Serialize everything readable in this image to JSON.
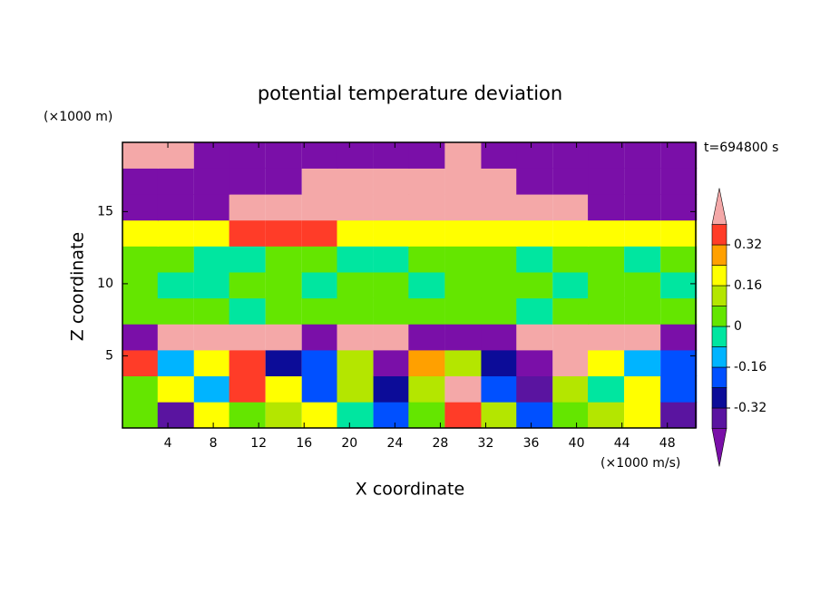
{
  "chart_data": {
    "type": "contour",
    "title": "potential temperature deviation",
    "xlabel": "X coordinate",
    "ylabel": "Z coordinate",
    "x_unit": "(×1000 m/s)",
    "y_unit": "(×1000 m)",
    "annotation": "t=694800 s",
    "xlim": [
      0,
      50.5
    ],
    "ylim": [
      0,
      19.8
    ],
    "xticks": [
      4,
      8,
      12,
      16,
      20,
      24,
      28,
      32,
      36,
      40,
      44,
      48
    ],
    "yticks": [
      5,
      10,
      15
    ],
    "levels": [
      -0.4,
      -0.32,
      -0.24,
      -0.16,
      -0.08,
      0,
      0.08,
      0.16,
      0.24,
      0.32,
      0.4
    ],
    "colors": [
      "#5a14a0",
      "#0c0c98",
      "#0050ff",
      "#00b4ff",
      "#00e6a0",
      "#64e600",
      "#b4e600",
      "#ffff00",
      "#ffa000",
      "#ff3c28"
    ],
    "under_color": "#7a0fa8",
    "over_color": "#f4a8a8",
    "colorbar_ticks": [
      0.32,
      0.16,
      0,
      -0.16,
      -0.32
    ],
    "field": {
      "x": [
        1.6,
        4.7,
        7.9,
        11,
        14.2,
        17.4,
        20.5,
        23.7,
        26.8,
        30,
        33.2,
        36.3,
        39.5,
        42.6,
        45.8,
        49
      ],
      "z": [
        0.9,
        2.7,
        4.5,
        6.3,
        8.1,
        9.9,
        11.7,
        13.5,
        15.3,
        17.1,
        18.9
      ],
      "values": [
        [
          0.05,
          -0.35,
          0.2,
          0.05,
          0.12,
          0.2,
          -0.04,
          -0.2,
          0.05,
          0.35,
          0.12,
          -0.2,
          0.05,
          0.12,
          0.2,
          -0.35
        ],
        [
          0.05,
          0.2,
          -0.12,
          0.35,
          0.2,
          -0.2,
          0.12,
          -0.3,
          0.12,
          0.5,
          -0.2,
          -0.4,
          0.1,
          -0.04,
          0.2,
          -0.2
        ],
        [
          0.35,
          -0.12,
          0.2,
          0.35,
          -0.28,
          -0.2,
          0.1,
          -0.45,
          0.3,
          0.12,
          -0.3,
          -0.45,
          0.5,
          0.2,
          -0.12,
          -0.2
        ],
        [
          -0.5,
          0.5,
          0.5,
          0.5,
          0.5,
          -0.5,
          0.5,
          0.5,
          -0.5,
          -0.5,
          -0.5,
          0.5,
          0.5,
          0.5,
          0.5,
          -0.5
        ],
        [
          0.04,
          0.04,
          0.04,
          -0.04,
          0.04,
          0.04,
          0.04,
          0.04,
          0.04,
          0.04,
          0.04,
          -0.04,
          0.04,
          0.04,
          0.04,
          0.04
        ],
        [
          0.04,
          -0.04,
          -0.04,
          0.04,
          0.04,
          -0.04,
          0.04,
          0.04,
          -0.04,
          0.04,
          0.04,
          0.04,
          -0.04,
          0.04,
          0.04,
          -0.04
        ],
        [
          0.04,
          0.04,
          -0.04,
          -0.04,
          0.04,
          0.04,
          -0.04,
          -0.04,
          0.04,
          0.04,
          0.04,
          -0.04,
          0.04,
          0.04,
          -0.04,
          0.04
        ],
        [
          0.2,
          0.2,
          0.2,
          0.35,
          0.35,
          0.35,
          0.2,
          0.2,
          0.2,
          0.2,
          0.2,
          0.2,
          0.2,
          0.2,
          0.2,
          0.2
        ],
        [
          -0.5,
          -0.5,
          -0.5,
          0.5,
          0.5,
          0.5,
          0.5,
          0.5,
          0.5,
          0.5,
          0.5,
          0.5,
          0.5,
          -0.5,
          -0.5,
          -0.5
        ],
        [
          -0.5,
          -0.5,
          -0.5,
          -0.5,
          -0.5,
          0.5,
          0.5,
          0.5,
          0.5,
          0.5,
          0.5,
          -0.5,
          -0.5,
          -0.5,
          -0.5,
          -0.5
        ],
        [
          0.5,
          0.5,
          -0.5,
          -0.5,
          -0.5,
          -0.5,
          -0.5,
          -0.5,
          -0.5,
          0.5,
          -0.5,
          -0.5,
          -0.5,
          -0.5,
          -0.5,
          -0.5
        ]
      ]
    }
  }
}
